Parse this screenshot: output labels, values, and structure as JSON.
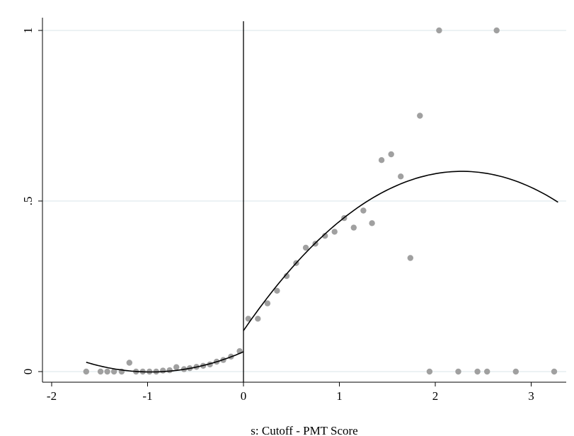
{
  "chart_data": {
    "type": "scatter",
    "title": "",
    "xlabel": "s: Cutoff - PMT Score",
    "ylabel": "",
    "xlim": [
      -2.1,
      3.35
    ],
    "ylim": [
      -0.03,
      1.03
    ],
    "x_ticks": [
      -2,
      -1,
      0,
      1,
      2,
      3
    ],
    "x_tick_labels": [
      "-2",
      "-1",
      "0",
      "1",
      "2",
      "3"
    ],
    "y_ticks": [
      0,
      0.5,
      1
    ],
    "y_tick_labels": [
      "0",
      ".5",
      "1"
    ],
    "cutoff_line_x": 0,
    "grid": "horizontal",
    "colors": {
      "points": "#a0a0a0",
      "fit_line": "#000000",
      "grid": "#e6eef0"
    },
    "series": [
      {
        "kind": "binned-means",
        "points": [
          [
            -1.64,
            0
          ],
          [
            -1.49,
            0
          ],
          [
            -1.42,
            0
          ],
          [
            -1.35,
            0
          ],
          [
            -1.27,
            0
          ],
          [
            -1.19,
            0.026
          ],
          [
            -1.12,
            0
          ],
          [
            -1.05,
            0
          ],
          [
            -0.98,
            0
          ],
          [
            -0.91,
            0
          ],
          [
            -0.84,
            0.003
          ],
          [
            -0.77,
            0.004
          ],
          [
            -0.7,
            0.013
          ],
          [
            -0.62,
            0.007
          ],
          [
            -0.56,
            0.01
          ],
          [
            -0.49,
            0.014
          ],
          [
            -0.42,
            0.017
          ],
          [
            -0.35,
            0.021
          ],
          [
            -0.28,
            0.029
          ],
          [
            -0.21,
            0.034
          ],
          [
            -0.13,
            0.044
          ],
          [
            -0.04,
            0.06
          ],
          [
            0.05,
            0.155
          ],
          [
            0.15,
            0.155
          ],
          [
            0.25,
            0.2
          ],
          [
            0.35,
            0.237
          ],
          [
            0.45,
            0.28
          ],
          [
            0.55,
            0.318
          ],
          [
            0.65,
            0.363
          ],
          [
            0.75,
            0.375
          ],
          [
            0.85,
            0.398
          ],
          [
            0.95,
            0.41
          ],
          [
            1.05,
            0.45
          ],
          [
            1.15,
            0.422
          ],
          [
            1.25,
            0.472
          ],
          [
            1.34,
            0.435
          ],
          [
            1.44,
            0.62
          ],
          [
            1.54,
            0.637
          ],
          [
            1.64,
            0.572
          ],
          [
            1.74,
            0.333
          ],
          [
            1.84,
            0.75
          ],
          [
            1.94,
            0
          ],
          [
            2.04,
            1.0
          ],
          [
            2.24,
            0
          ],
          [
            2.44,
            0
          ],
          [
            2.54,
            0
          ],
          [
            2.64,
            1.0
          ],
          [
            2.84,
            0
          ],
          [
            3.24,
            0
          ]
        ]
      },
      {
        "kind": "fit-left",
        "coefficients": {
          "a": 0.058,
          "b": 0.122,
          "c": 0.063
        },
        "x_range": [
          -1.64,
          0
        ]
      },
      {
        "kind": "fit-right",
        "coefficients": {
          "a": 0.12,
          "b": 0.41,
          "c": -0.09
        },
        "x_range": [
          0,
          3.28
        ]
      }
    ]
  }
}
